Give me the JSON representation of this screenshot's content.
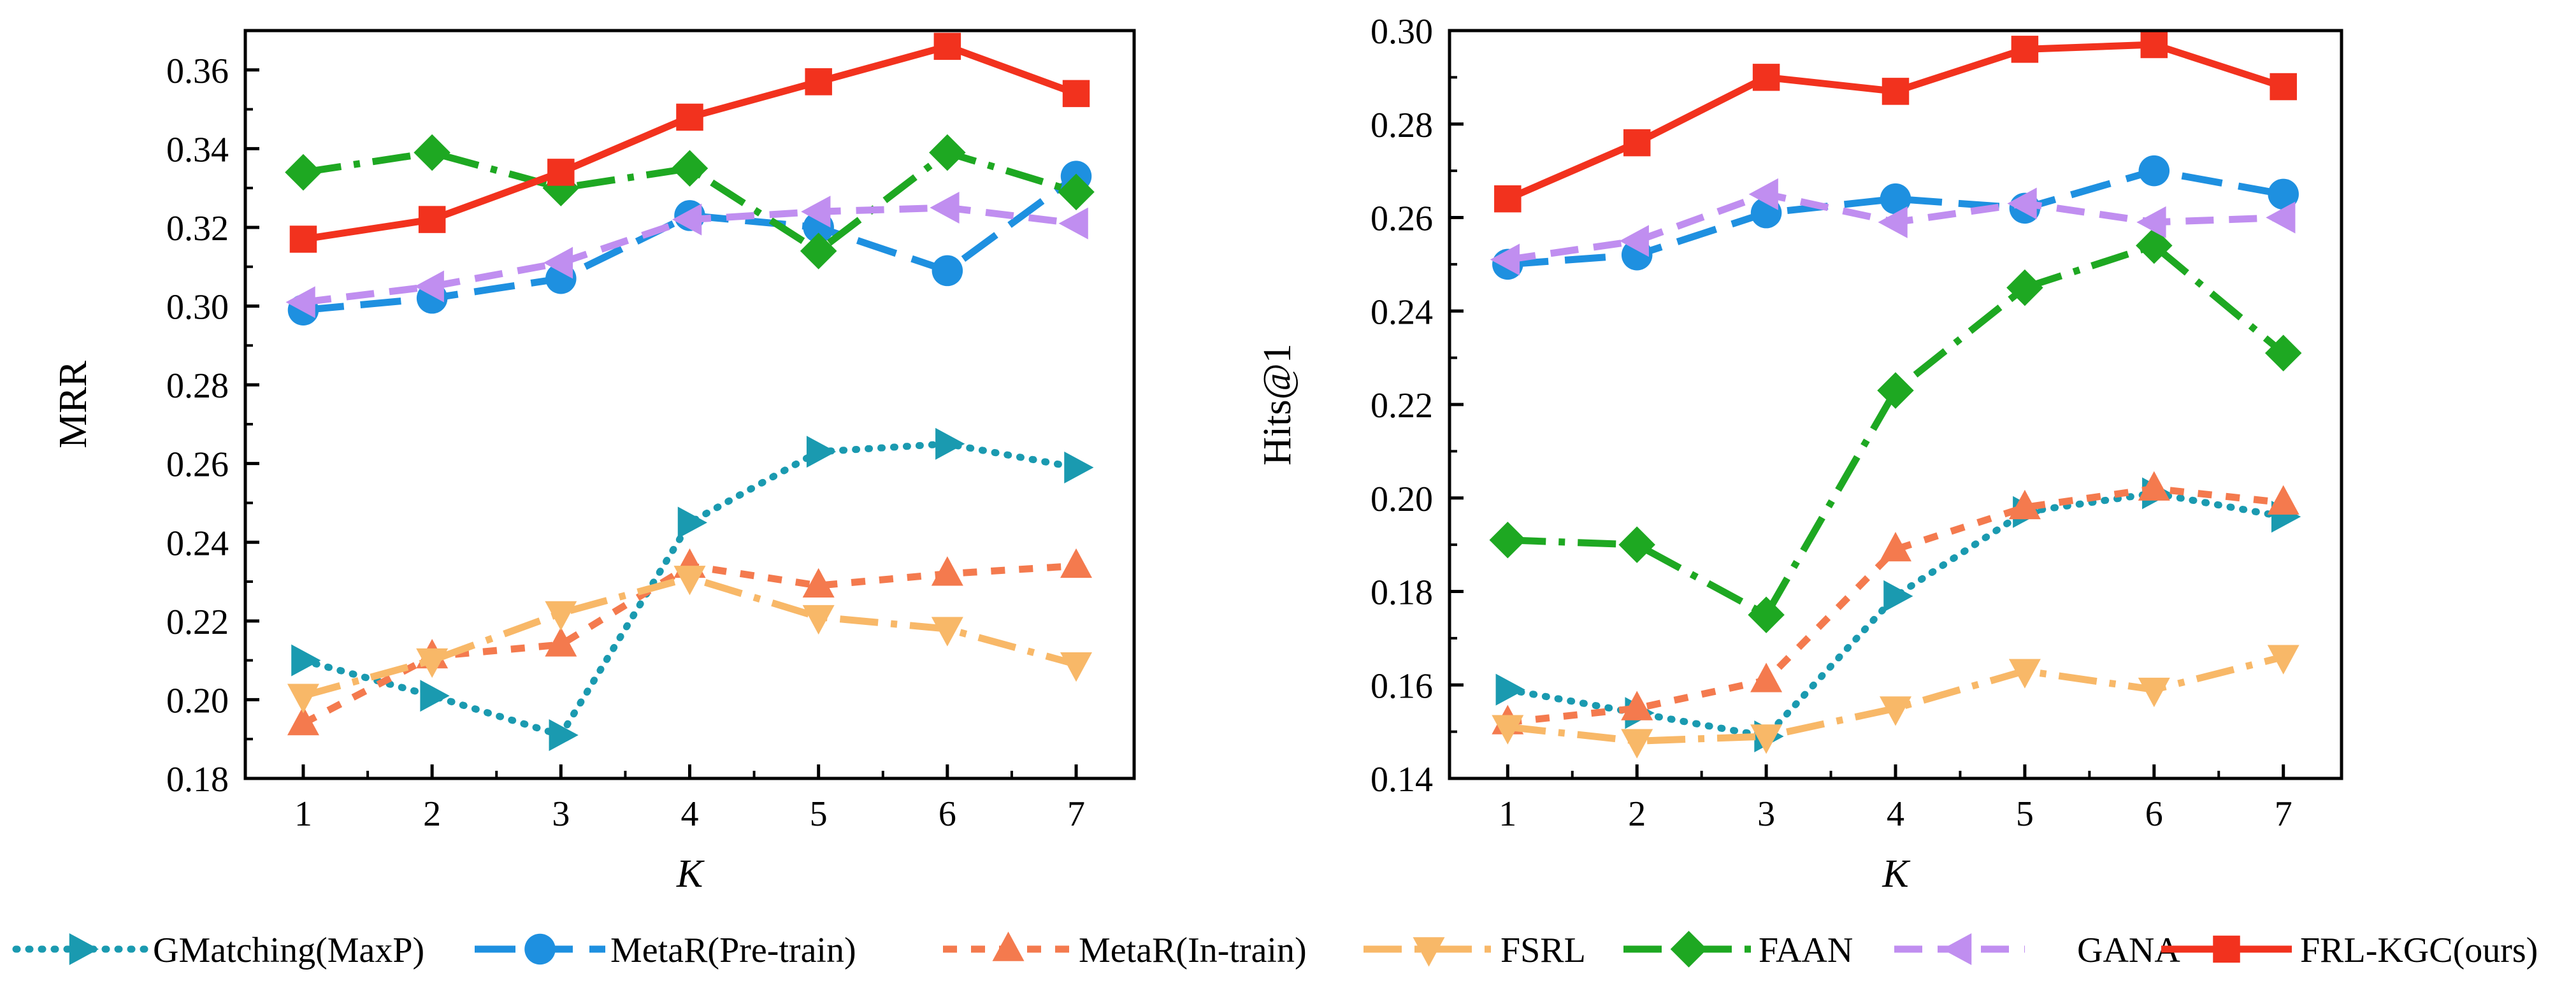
{
  "chart_data": [
    {
      "type": "line",
      "xlabel": "K",
      "ylabel": "MRR",
      "x": [
        1,
        2,
        3,
        4,
        5,
        6,
        7
      ],
      "xticks": [
        "1",
        "2",
        "3",
        "4",
        "5",
        "6",
        "7"
      ],
      "xlim": [
        0.55,
        7.45
      ],
      "ylim": [
        0.18,
        0.37
      ],
      "yticks": [
        "0.18",
        "0.20",
        "0.22",
        "0.24",
        "0.26",
        "0.28",
        "0.30",
        "0.32",
        "0.34",
        "0.36"
      ],
      "series": [
        {
          "name": "GMatching(MaxP)",
          "values": [
            0.21,
            0.201,
            0.191,
            0.245,
            0.263,
            0.265,
            0.259
          ]
        },
        {
          "name": "MetaR(Pre-train)",
          "values": [
            0.299,
            0.302,
            0.307,
            0.323,
            0.32,
            0.309,
            0.333
          ]
        },
        {
          "name": "MetaR(In-train)",
          "values": [
            0.194,
            0.211,
            0.214,
            0.234,
            0.229,
            0.232,
            0.234
          ]
        },
        {
          "name": "FSRL",
          "values": [
            0.201,
            0.21,
            0.222,
            0.231,
            0.221,
            0.218,
            0.209
          ]
        },
        {
          "name": "FAAN",
          "values": [
            0.334,
            0.339,
            0.33,
            0.335,
            0.314,
            0.339,
            0.329
          ]
        },
        {
          "name": "GANA",
          "values": [
            0.301,
            0.305,
            0.311,
            0.322,
            0.324,
            0.325,
            0.321
          ]
        },
        {
          "name": "FRL-KGC(ours)",
          "values": [
            0.317,
            0.322,
            0.334,
            0.348,
            0.357,
            0.366,
            0.354
          ]
        }
      ]
    },
    {
      "type": "line",
      "xlabel": "K",
      "ylabel": "Hits@1",
      "x": [
        1,
        2,
        3,
        4,
        5,
        6,
        7
      ],
      "xticks": [
        "1",
        "2",
        "3",
        "4",
        "5",
        "6",
        "7"
      ],
      "xlim": [
        0.55,
        7.45
      ],
      "ylim": [
        0.14,
        0.3
      ],
      "yticks": [
        "0.14",
        "0.16",
        "0.18",
        "0.20",
        "0.22",
        "0.24",
        "0.26",
        "0.28",
        "0.30"
      ],
      "series": [
        {
          "name": "GMatching(MaxP)",
          "values": [
            0.159,
            0.154,
            0.149,
            0.179,
            0.197,
            0.201,
            0.196
          ]
        },
        {
          "name": "MetaR(Pre-train)",
          "values": [
            0.25,
            0.252,
            0.261,
            0.264,
            0.262,
            0.27,
            0.265
          ]
        },
        {
          "name": "MetaR(In-train)",
          "values": [
            0.152,
            0.155,
            0.161,
            0.189,
            0.198,
            0.202,
            0.199
          ]
        },
        {
          "name": "FSRL",
          "values": [
            0.151,
            0.148,
            0.149,
            0.155,
            0.163,
            0.159,
            0.166
          ]
        },
        {
          "name": "FAAN",
          "values": [
            0.191,
            0.19,
            0.175,
            0.223,
            0.245,
            0.254,
            0.231
          ]
        },
        {
          "name": "GANA",
          "values": [
            0.251,
            0.255,
            0.265,
            0.259,
            0.263,
            0.259,
            0.26
          ]
        },
        {
          "name": "FRL-KGC(ours)",
          "values": [
            0.264,
            0.276,
            0.29,
            0.287,
            0.296,
            0.297,
            0.288
          ]
        }
      ]
    }
  ],
  "legend": {
    "placement": "bottom",
    "entries": [
      "GMatching(MaxP)",
      "MetaR(Pre-train)",
      "MetaR(In-train)",
      "FSRL",
      "FAAN",
      "GANA",
      "FRL-KGC(ours)"
    ]
  },
  "styles": [
    {
      "name": "GMatching(MaxP)",
      "color": "#1a9ab0",
      "dash": "dotted",
      "marker": "triangle-right"
    },
    {
      "name": "MetaR(Pre-train)",
      "color": "#1e90e0",
      "dash": "long-dash",
      "marker": "circle"
    },
    {
      "name": "MetaR(In-train)",
      "color": "#f47a4e",
      "dash": "short-dash",
      "marker": "triangle-up"
    },
    {
      "name": "FSRL",
      "color": "#f8b868",
      "dash": "dash-dot",
      "marker": "triangle-down"
    },
    {
      "name": "FAAN",
      "color": "#1ea822",
      "dash": "dash-dot",
      "marker": "diamond"
    },
    {
      "name": "GANA",
      "color": "#c08ef0",
      "dash": "dash",
      "marker": "triangle-left"
    },
    {
      "name": "FRL-KGC(ours)",
      "color": "#f2321e",
      "dash": "solid",
      "marker": "square"
    }
  ]
}
